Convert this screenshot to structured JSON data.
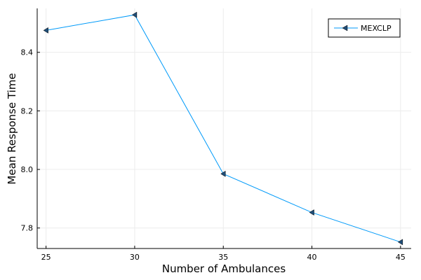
{
  "chart_data": {
    "type": "line",
    "title": "",
    "xlabel": "Number of Ambulances",
    "ylabel": "Mean Response Time",
    "x": [
      25,
      30,
      35,
      40,
      45
    ],
    "xticks": [
      "25",
      "30",
      "35",
      "40",
      "45"
    ],
    "yticks": [
      "7.8",
      "8.0",
      "8.2",
      "8.4"
    ],
    "xlim": [
      24.5,
      45.6
    ],
    "ylim": [
      7.73,
      8.55
    ],
    "grid": true,
    "legend_position": "top-right",
    "series": [
      {
        "name": "MEXCLP",
        "values": [
          8.475,
          8.528,
          7.985,
          7.853,
          7.752
        ],
        "color": "#009af9",
        "marker": "left-triangle",
        "marker_color": "#1f4e79"
      }
    ]
  }
}
